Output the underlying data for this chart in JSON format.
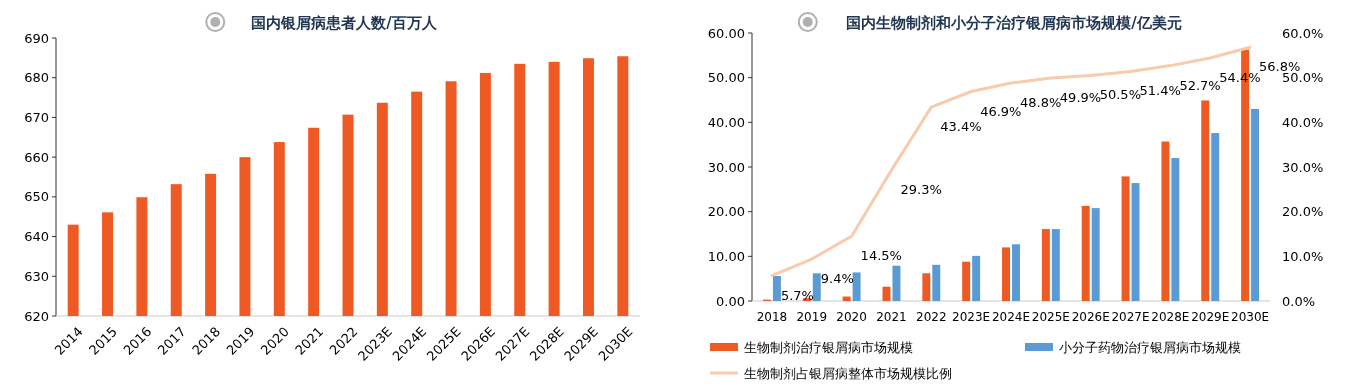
{
  "chart_data": [
    {
      "type": "bar",
      "title": "国内银屑病患者人数/百万人",
      "categories": [
        "2014",
        "2015",
        "2016",
        "2017",
        "2018",
        "2019",
        "2020",
        "2021",
        "2022",
        "2023E",
        "2024E",
        "2025E",
        "2026E",
        "2027E",
        "2028E",
        "2029E",
        "2030E"
      ],
      "values": [
        643,
        646.1,
        649.9,
        653.2,
        655.8,
        660,
        663.8,
        667.4,
        670.7,
        673.7,
        676.5,
        679.1,
        681.2,
        683.5,
        684,
        684.9,
        685.4
      ],
      "color": "#ef5a24",
      "ylim": [
        620,
        690
      ],
      "yticks": [
        620,
        630,
        640,
        650,
        660,
        670,
        680,
        690
      ],
      "grid": false,
      "legend": false
    },
    {
      "type": "bar",
      "title": "国内生物制剂和小分子治疗银屑病市场规模/亿美元",
      "categories": [
        "2018",
        "2019",
        "2020",
        "2021",
        "2022",
        "2023E",
        "2024E",
        "2025E",
        "2026E",
        "2027E",
        "2028E",
        "2029E",
        "2030E"
      ],
      "series": [
        {
          "name": "生物制剂治疗银屑病市场规模",
          "color": "#ef5a24",
          "values": [
            0.3,
            0.6,
            1.0,
            3.2,
            6.2,
            8.8,
            12.0,
            16.1,
            21.3,
            27.9,
            35.7,
            44.9,
            56.3
          ]
        },
        {
          "name": "小分子药物治疗银屑病市场规模",
          "color": "#5b9bd5",
          "values": [
            5.6,
            6.2,
            6.4,
            7.9,
            8.1,
            10.1,
            12.7,
            16.1,
            20.8,
            26.4,
            32.0,
            37.6,
            43.0
          ]
        },
        {
          "name": "生物制剂占银屑病整体市场规模比例",
          "type": "line",
          "axis": "y2",
          "color": "#f8cbad",
          "values": [
            5.7,
            9.4,
            14.5,
            29.3,
            43.4,
            46.9,
            48.8,
            49.9,
            50.5,
            51.4,
            52.7,
            54.4,
            56.8
          ],
          "value_labels": [
            "5.7%",
            "9.4%",
            "14.5%",
            "29.3%",
            "43.4%",
            "46.9%",
            "48.8%",
            "49.9%",
            "50.5%",
            "51.4%",
            "52.7%",
            "54.4%",
            "56.8%"
          ]
        }
      ],
      "ylim": [
        0,
        60
      ],
      "yticks": [
        {
          "value": 0,
          "label": "0.00"
        },
        {
          "value": 10,
          "label": "10.00"
        },
        {
          "value": 20,
          "label": "20.00"
        },
        {
          "value": 30,
          "label": "30.00"
        },
        {
          "value": 40,
          "label": "40.00"
        },
        {
          "value": 50,
          "label": "50.00"
        },
        {
          "value": 60,
          "label": "60.00"
        }
      ],
      "y2lim": [
        0,
        60
      ],
      "y2ticks": [
        {
          "value": 0,
          "label": "0.0%"
        },
        {
          "value": 10,
          "label": "10.0%"
        },
        {
          "value": 20,
          "label": "20.0%"
        },
        {
          "value": 30,
          "label": "30.0%"
        },
        {
          "value": 40,
          "label": "40.0%"
        },
        {
          "value": 50,
          "label": "50.0%"
        },
        {
          "value": 60,
          "label": "60.0%"
        }
      ],
      "grid": false,
      "legend": "bottom"
    }
  ]
}
